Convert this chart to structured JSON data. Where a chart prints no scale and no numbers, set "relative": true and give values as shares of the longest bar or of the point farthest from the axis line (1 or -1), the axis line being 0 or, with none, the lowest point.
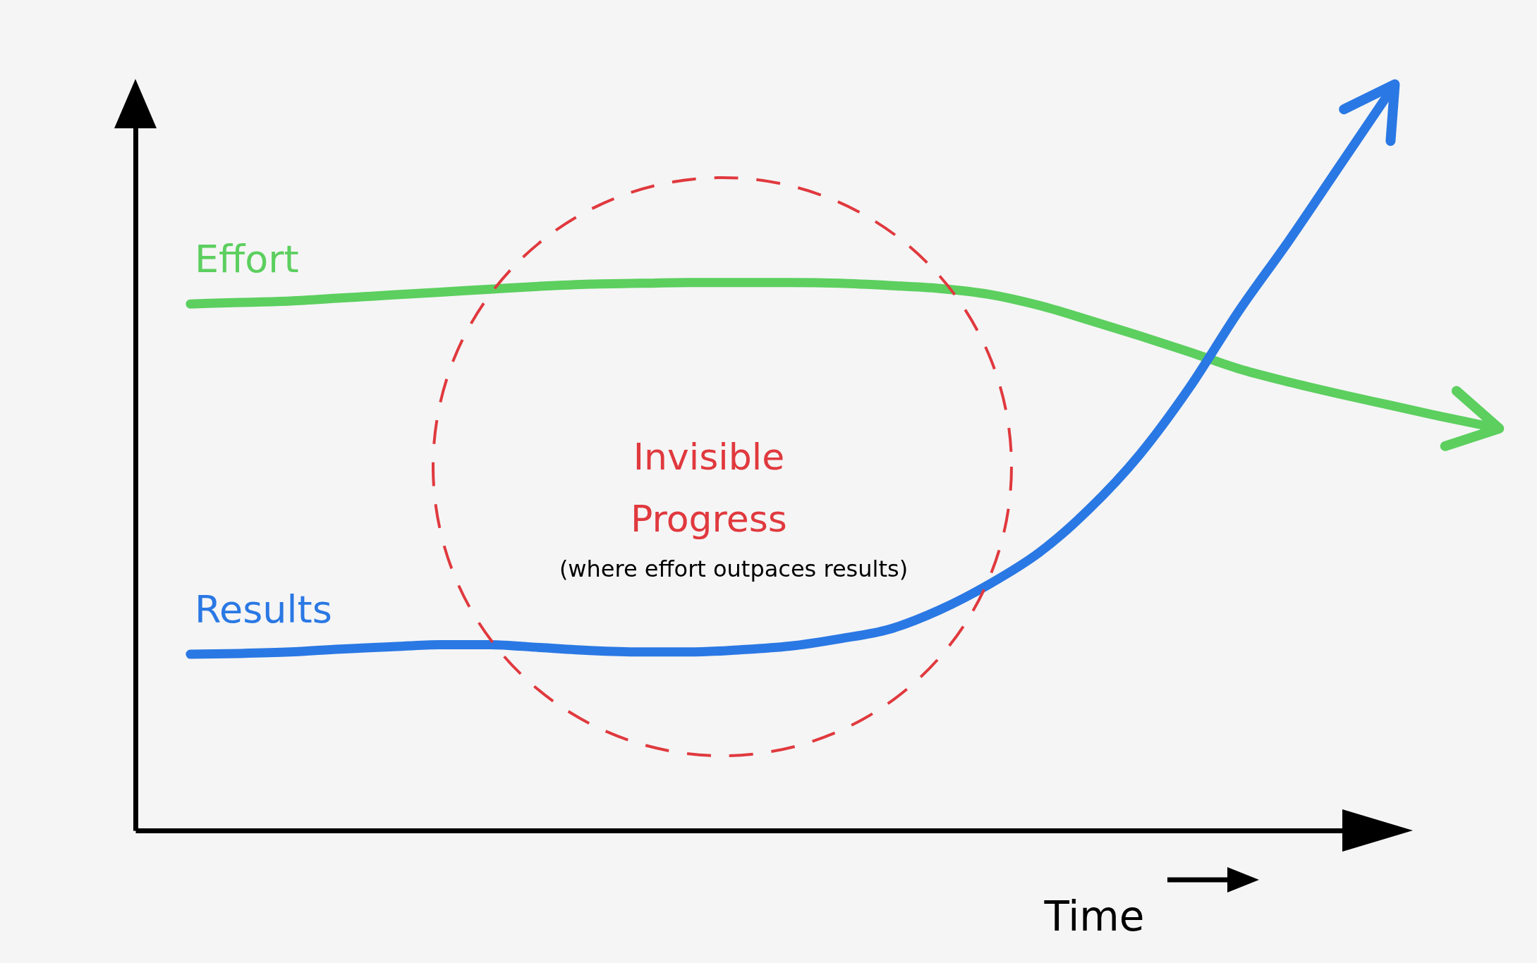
{
  "chart_data": {
    "type": "line",
    "relative": true,
    "xlabel": "Time",
    "categories": [
      null,
      null,
      null,
      null,
      null,
      null,
      null,
      null,
      null,
      null,
      null,
      null,
      null,
      null,
      null,
      null,
      null,
      null,
      null,
      null,
      null,
      null,
      null,
      null,
      null,
      null,
      null
    ],
    "series": [
      {
        "name": "Effort",
        "color": "#5ccf5f",
        "values": [
          0.714,
          0.716,
          0.718,
          0.722,
          0.726,
          0.73,
          0.734,
          0.738,
          0.741,
          0.742,
          0.743,
          0.743,
          0.743,
          0.742,
          0.739,
          0.735,
          0.727,
          0.712,
          0.692,
          0.671,
          0.649,
          0.626,
          0.608,
          0.592,
          0.577,
          0.562,
          0.548
        ]
      },
      {
        "name": "Results",
        "color": "#2a78e4",
        "values": [
          0.239,
          0.24,
          0.242,
          0.246,
          0.249,
          0.252,
          0.252,
          0.248,
          0.244,
          0.242,
          0.242,
          0.245,
          0.25,
          0.26,
          0.273,
          0.299,
          0.334,
          0.377,
          0.436,
          0.509,
          0.6,
          0.705,
          0.8,
          0.9,
          1.0,
          null,
          null
        ]
      }
    ],
    "annotations": [
      "Invisible Progress",
      "(where effort outpaces results)"
    ],
    "legend": false,
    "grid": false
  }
}
